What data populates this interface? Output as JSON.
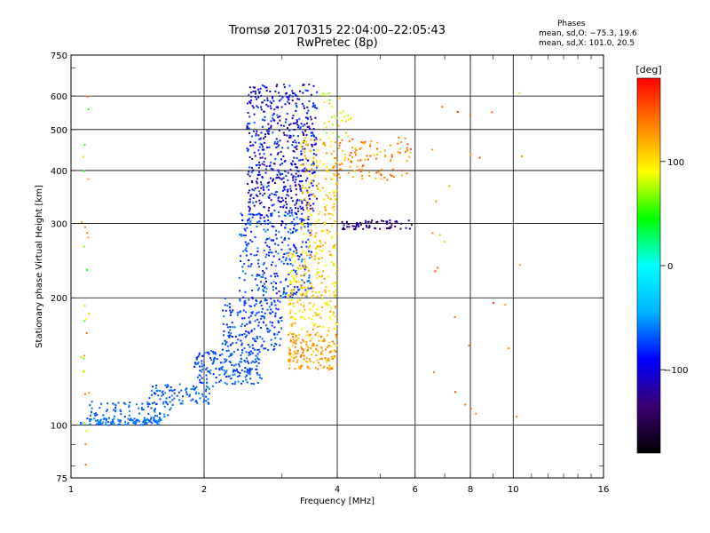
{
  "chart_data": {
    "type": "scatter",
    "title": "Tromsø 20170315 22:04:00–22:05:43",
    "subtitle": "RwPretec (8p)",
    "xlabel": "Frequency [MHz]",
    "ylabel": "Stationary phase Virtual Height [km]",
    "x_scale": "log",
    "y_scale": "log",
    "xlim": [
      1,
      16
    ],
    "ylim": [
      75,
      750
    ],
    "xticks": [
      1,
      2,
      4,
      6,
      8,
      10,
      16
    ],
    "yticks": [
      75,
      100,
      200,
      300,
      400,
      500,
      600,
      750
    ],
    "grid": true,
    "legend": {
      "title": "Phases",
      "line_o": "mean, sd,O: −75.3, 19.6",
      "line_x": "mean, sd,X: 101.0, 20.5"
    },
    "colorbar": {
      "label": "[deg]",
      "range": [
        -180,
        180
      ],
      "ticks": [
        100,
        0,
        -100
      ],
      "colormap": [
        "#000000",
        "#3a0070",
        "#0000ff",
        "#00b4ff",
        "#00ffff",
        "#00ff00",
        "#ffff00",
        "#ff8000",
        "#ff0000"
      ]
    },
    "clusters": [
      {
        "x": [
          1.05,
          1.6
        ],
        "y": [
          100,
          104
        ],
        "phase": [
          -70,
          -55
        ],
        "n": 120
      },
      {
        "x": [
          1.1,
          1.7
        ],
        "y": [
          104,
          114
        ],
        "phase": [
          -75,
          -55
        ],
        "n": 70
      },
      {
        "x": [
          1.5,
          2.1
        ],
        "y": [
          112,
          125
        ],
        "phase": [
          -80,
          -55
        ],
        "n": 90
      },
      {
        "x": [
          1.9,
          2.7
        ],
        "y": [
          125,
          150
        ],
        "phase": [
          -85,
          -55
        ],
        "n": 190
      },
      {
        "x": [
          2.2,
          3.0
        ],
        "y": [
          150,
          200
        ],
        "phase": [
          -85,
          -60
        ],
        "n": 200
      },
      {
        "x": [
          2.4,
          3.5
        ],
        "y": [
          200,
          320
        ],
        "phase": [
          -95,
          -55
        ],
        "n": 320
      },
      {
        "x": [
          2.5,
          3.6
        ],
        "y": [
          320,
          640
        ],
        "phase": [
          -130,
          -65
        ],
        "n": 560
      },
      {
        "x": [
          3.1,
          4.0
        ],
        "y": [
          135,
          165
        ],
        "phase": [
          100,
          145
        ],
        "n": 160
      },
      {
        "x": [
          3.1,
          4.0
        ],
        "y": [
          165,
          260
        ],
        "phase": [
          80,
          130
        ],
        "n": 210
      },
      {
        "x": [
          3.3,
          4.0
        ],
        "y": [
          260,
          480
        ],
        "phase": [
          90,
          130
        ],
        "n": 170
      },
      {
        "x": [
          3.7,
          4.3
        ],
        "y": [
          480,
          620
        ],
        "phase": [
          60,
          110
        ],
        "n": 30
      },
      {
        "x": [
          3.9,
          5.9
        ],
        "y": [
          380,
          480
        ],
        "phase": [
          105,
          160
        ],
        "n": 110
      },
      {
        "x": [
          4.1,
          5.9
        ],
        "y": [
          290,
          305
        ],
        "phase": [
          -140,
          -110
        ],
        "n": 70
      },
      {
        "x": [
          1.05,
          1.1
        ],
        "y": [
          75,
          640
        ],
        "phase": [
          40,
          150
        ],
        "n": 28
      },
      {
        "x": [
          6.5,
          10.5
        ],
        "y": [
          100,
          650
        ],
        "phase": [
          100,
          170
        ],
        "n": 28
      }
    ]
  }
}
